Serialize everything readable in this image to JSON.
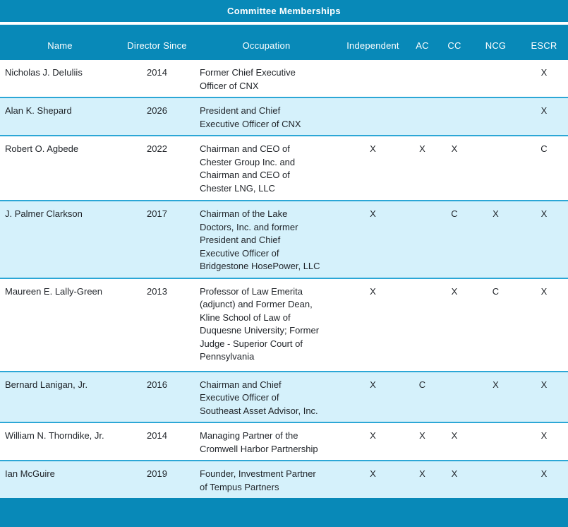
{
  "title": "Committee Memberships",
  "colors": {
    "accent_teal": "#0889b8",
    "row_highlight": "#d5f1fb",
    "row_border": "#2ca7d6",
    "header_text": "#ffffff",
    "body_text": "#1f2328"
  },
  "table": {
    "columns": [
      {
        "key": "name",
        "label": "Name"
      },
      {
        "key": "since",
        "label": "Director Since"
      },
      {
        "key": "occupation",
        "label": "Occupation"
      },
      {
        "key": "independent",
        "label": "Independent"
      },
      {
        "key": "ac",
        "label": "AC"
      },
      {
        "key": "cc",
        "label": "CC"
      },
      {
        "key": "ncg",
        "label": "NCG"
      },
      {
        "key": "escr",
        "label": "ESCR"
      }
    ],
    "rows": [
      {
        "name": "Nicholas J. DeIuliis",
        "since": "2014",
        "occupation": "Former Chief Executive\nOfficer of CNX",
        "independent": "",
        "ac": "",
        "cc": "",
        "ncg": "",
        "escr": "X"
      },
      {
        "name": "Alan K. Shepard",
        "since": "2026",
        "occupation": "President and Chief\nExecutive Officer of CNX",
        "independent": "",
        "ac": "",
        "cc": "",
        "ncg": "",
        "escr": "X"
      },
      {
        "name": "Robert O. Agbede",
        "since": "2022",
        "occupation": "Chairman and CEO of\nChester Group Inc. and\nChairman and CEO of\nChester LNG, LLC",
        "independent": "X",
        "ac": "X",
        "cc": "X",
        "ncg": "",
        "escr": "C"
      },
      {
        "name": "J. Palmer Clarkson",
        "since": "2017",
        "occupation": "Chairman of the Lake\nDoctors, Inc. and former\nPresident and Chief\nExecutive Officer of\nBridgestone HosePower, LLC",
        "independent": "X",
        "ac": "",
        "cc": "C",
        "ncg": "X",
        "escr": "X"
      },
      {
        "name": "Maureen E. Lally-Green",
        "since": "2013",
        "occupation": "Professor of Law Emerita\n(adjunct) and Former Dean,\nKline School of Law of\nDuquesne University; Former\nJudge - Superior Court of\nPennsylvania",
        "independent": "X",
        "ac": "",
        "cc": "X",
        "ncg": "C",
        "escr": "X"
      },
      {
        "name": "Bernard Lanigan, Jr.",
        "since": "2016",
        "occupation": "Chairman and Chief\nExecutive Officer of\nSoutheast Asset Advisor, Inc.",
        "independent": "X",
        "ac": "C",
        "cc": "",
        "ncg": "X",
        "escr": "X"
      },
      {
        "name": "William N. Thorndike, Jr.",
        "since": "2014",
        "occupation": "Managing Partner of the\nCromwell Harbor Partnership",
        "independent": "X",
        "ac": "X",
        "cc": "X",
        "ncg": "",
        "escr": "X"
      },
      {
        "name": "Ian McGuire",
        "since": "2019",
        "occupation": "Founder, Investment Partner\nof Tempus Partners",
        "independent": "X",
        "ac": "X",
        "cc": "X",
        "ncg": "",
        "escr": "X"
      }
    ]
  }
}
